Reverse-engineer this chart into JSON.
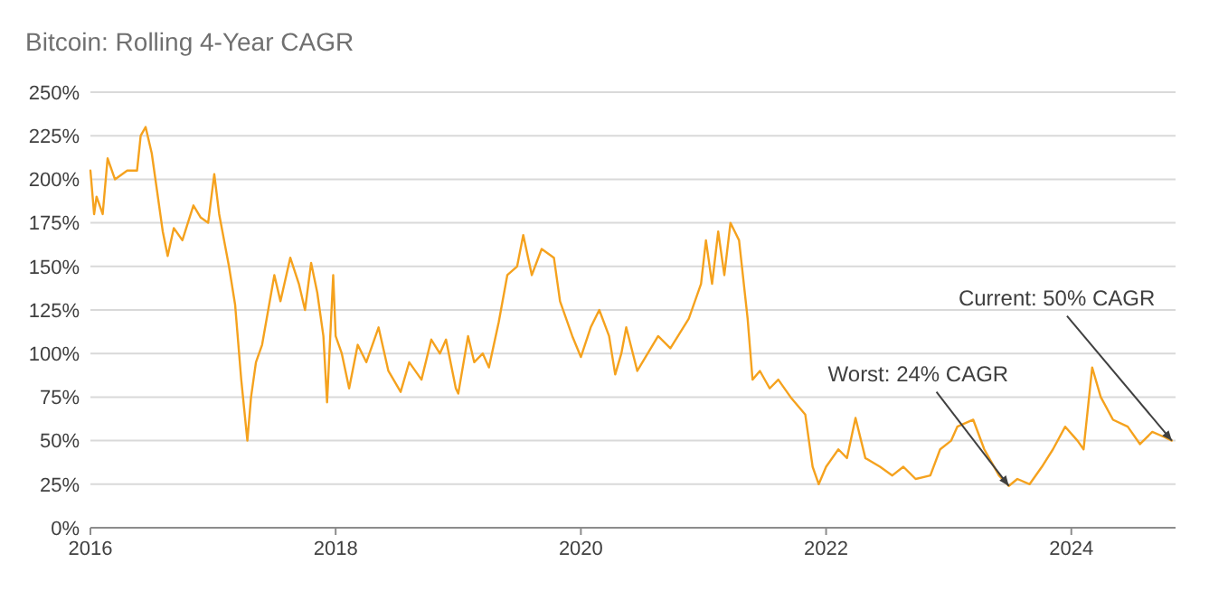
{
  "chart_data": {
    "type": "line",
    "title": "Bitcoin: Rolling 4-Year CAGR",
    "xlim": [
      2016,
      2024.85
    ],
    "xticks": [
      2016,
      2018,
      2020,
      2022,
      2024
    ],
    "ylim": [
      0,
      250
    ],
    "yticks": [
      {
        "value": 0,
        "label": "0%"
      },
      {
        "value": 25,
        "label": "25%"
      },
      {
        "value": 50,
        "label": "50%"
      },
      {
        "value": 75,
        "label": "75%"
      },
      {
        "value": 100,
        "label": "100%"
      },
      {
        "value": 125,
        "label": "125%"
      },
      {
        "value": 150,
        "label": "150%"
      },
      {
        "value": 175,
        "label": "175%"
      },
      {
        "value": 200,
        "label": "200%"
      },
      {
        "value": 225,
        "label": "225%"
      },
      {
        "value": 250,
        "label": "250%"
      }
    ],
    "grid": "y",
    "marker": "none",
    "line_style": "solid",
    "annotations": [
      {
        "text": "Worst: 24% CAGR",
        "x": 2023.49,
        "y": 24
      },
      {
        "text": "Current: 50% CAGR",
        "x": 2024.82,
        "y": 50
      }
    ],
    "series": [
      {
        "color": "#f5a21e",
        "x": [
          2016.0,
          2016.03,
          2016.05,
          2016.1,
          2016.14,
          2016.2,
          2016.3,
          2016.38,
          2016.41,
          2016.45,
          2016.5,
          2016.54,
          2016.59,
          2016.63,
          2016.68,
          2016.75,
          2016.84,
          2016.9,
          2016.96,
          2017.01,
          2017.05,
          2017.13,
          2017.18,
          2017.23,
          2017.28,
          2017.31,
          2017.35,
          2017.4,
          2017.45,
          2017.5,
          2017.55,
          2017.63,
          2017.7,
          2017.75,
          2017.8,
          2017.85,
          2017.9,
          2017.93,
          2017.98,
          2018.0,
          2018.05,
          2018.11,
          2018.18,
          2018.25,
          2018.35,
          2018.43,
          2018.53,
          2018.6,
          2018.7,
          2018.78,
          2018.85,
          2018.9,
          2018.98,
          2019.0,
          2019.08,
          2019.13,
          2019.2,
          2019.25,
          2019.33,
          2019.4,
          2019.48,
          2019.53,
          2019.6,
          2019.68,
          2019.78,
          2019.83,
          2019.93,
          2020.0,
          2020.08,
          2020.15,
          2020.23,
          2020.28,
          2020.33,
          2020.37,
          2020.46,
          2020.63,
          2020.73,
          2020.88,
          2020.98,
          2021.02,
          2021.07,
          2021.12,
          2021.17,
          2021.22,
          2021.29,
          2021.36,
          2021.4,
          2021.46,
          2021.54,
          2021.61,
          2021.71,
          2021.83,
          2021.89,
          2021.94,
          2022.0,
          2022.1,
          2022.17,
          2022.24,
          2022.32,
          2022.44,
          2022.54,
          2022.63,
          2022.73,
          2022.85,
          2022.93,
          2023.02,
          2023.07,
          2023.2,
          2023.29,
          2023.41,
          2023.49,
          2023.56,
          2023.66,
          2023.76,
          2023.85,
          2023.95,
          2024.05,
          2024.1,
          2024.17,
          2024.24,
          2024.34,
          2024.46,
          2024.56,
          2024.66,
          2024.76,
          2024.82
        ],
        "values": [
          205,
          180,
          190,
          180,
          212,
          200,
          205,
          205,
          225,
          230,
          215,
          195,
          170,
          156,
          172,
          165,
          185,
          178,
          175,
          203,
          180,
          150,
          128,
          85,
          50,
          75,
          95,
          105,
          125,
          145,
          130,
          155,
          140,
          125,
          152,
          135,
          110,
          72,
          145,
          110,
          100,
          80,
          105,
          95,
          115,
          90,
          78,
          95,
          85,
          108,
          100,
          108,
          80,
          77,
          110,
          95,
          100,
          92,
          118,
          145,
          150,
          168,
          145,
          160,
          155,
          130,
          110,
          98,
          115,
          125,
          110,
          88,
          100,
          115,
          90,
          110,
          103,
          120,
          140,
          165,
          140,
          170,
          145,
          175,
          165,
          120,
          85,
          90,
          80,
          85,
          75,
          65,
          35,
          25,
          35,
          45,
          40,
          63,
          40,
          35,
          30,
          35,
          28,
          30,
          45,
          50,
          58,
          62,
          45,
          30,
          24,
          28,
          25,
          35,
          45,
          58,
          50,
          45,
          92,
          75,
          62,
          58,
          48,
          55,
          52,
          50
        ]
      }
    ]
  }
}
